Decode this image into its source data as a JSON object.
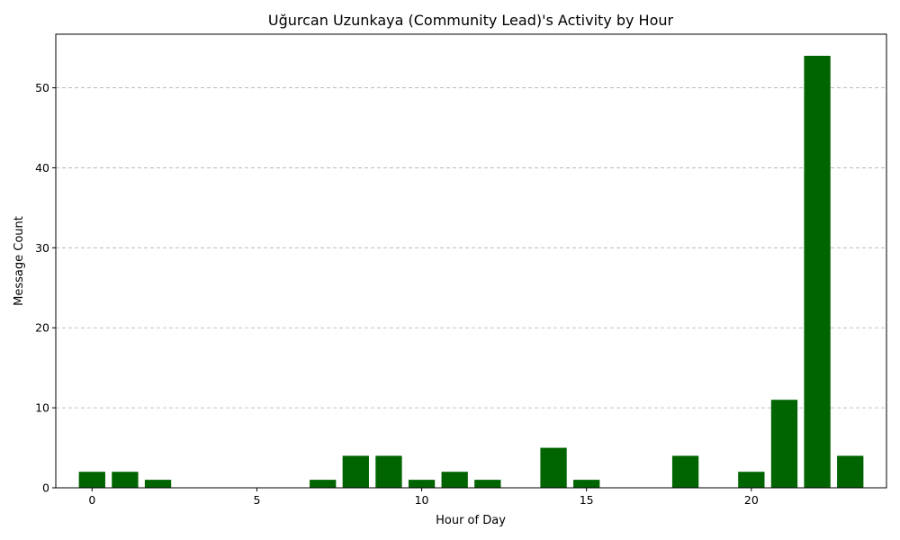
{
  "chart_data": {
    "type": "bar",
    "title": "Uğurcan Uzunkaya (Community Lead)'s Activity by Hour",
    "xlabel": "Hour of Day",
    "ylabel": "Message Count",
    "x": [
      0,
      1,
      2,
      7,
      8,
      9,
      10,
      11,
      12,
      14,
      15,
      18,
      20,
      21,
      22,
      23
    ],
    "values": [
      2,
      2,
      1,
      1,
      4,
      4,
      1,
      2,
      1,
      5,
      1,
      4,
      2,
      11,
      54,
      4
    ],
    "xlim": [
      -1.1,
      24.1
    ],
    "ylim": [
      0,
      56.7
    ],
    "xticks": [
      0,
      5,
      10,
      15,
      20
    ],
    "yticks": [
      0,
      10,
      20,
      30,
      40,
      50
    ],
    "bar_color": "#006400",
    "grid": "y-dashed",
    "legend": "none"
  }
}
